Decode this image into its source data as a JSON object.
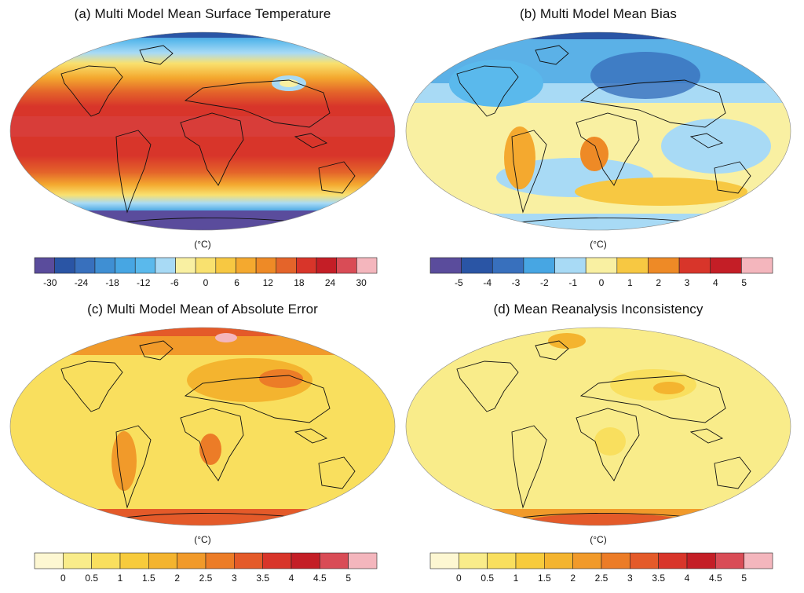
{
  "panels": [
    {
      "id": "a",
      "title": "(a) Multi Model Mean Surface Temperature",
      "unit": "(°C)",
      "palette": [
        "#5a4c9c",
        "#2a55a5",
        "#3870bd",
        "#3f8fd3",
        "#47a6e3",
        "#5ab9ec",
        "#a8daf5",
        "#f9f0a2",
        "#f9e16f",
        "#f7c842",
        "#f4a92f",
        "#ee8a26",
        "#e4642a",
        "#d8352a",
        "#c41e26",
        "#d94c56",
        "#f4b6bd"
      ],
      "tick_labels": [
        "-30",
        "-24",
        "-18",
        "-12",
        "-6",
        "0",
        "6",
        "12",
        "18",
        "24",
        "30"
      ],
      "tick_positions": [
        1,
        3,
        5,
        7,
        9,
        11,
        13,
        15,
        17,
        19,
        21
      ],
      "n_boxes": 22
    },
    {
      "id": "b",
      "title": "(b) Multi Model Mean Bias",
      "unit": "(°C)",
      "palette": [
        "#5a4c9c",
        "#2a55a5",
        "#3870bd",
        "#47a6e3",
        "#a8daf5",
        "#f9f0a2",
        "#f7c842",
        "#ee8a26",
        "#d8352a",
        "#c41e26",
        "#f4b6bd"
      ],
      "tick_labels": [
        "-5",
        "-4",
        "-3",
        "-2",
        "-1",
        "0",
        "1",
        "2",
        "3",
        "4",
        "5"
      ],
      "tick_positions": [
        1,
        2,
        3,
        4,
        5,
        6,
        7,
        8,
        9,
        10,
        11
      ],
      "n_boxes": 12
    },
    {
      "id": "c",
      "title": "(c) Multi Model Mean of Absolute Error",
      "unit": "(°C)",
      "palette": [
        "#fdf7d2",
        "#f9ec8a",
        "#f9df5e",
        "#f7cb3c",
        "#f4b42f",
        "#f19a2a",
        "#ec7c27",
        "#e45a29",
        "#d8352a",
        "#c41e26",
        "#d94c56",
        "#f4b6bd"
      ],
      "tick_labels": [
        "0",
        "0.5",
        "1",
        "1.5",
        "2",
        "2.5",
        "3",
        "3.5",
        "4",
        "4.5",
        "5"
      ],
      "tick_positions": [
        1,
        2,
        3,
        4,
        5,
        6,
        7,
        8,
        9,
        10,
        11
      ],
      "n_boxes": 12
    },
    {
      "id": "d",
      "title": "(d) Mean Reanalysis Inconsistency",
      "unit": "(°C)",
      "palette": [
        "#fdf7d2",
        "#f9ec8a",
        "#f9df5e",
        "#f7cb3c",
        "#f4b42f",
        "#f19a2a",
        "#ec7c27",
        "#e45a29",
        "#d8352a",
        "#c41e26",
        "#d94c56",
        "#f4b6bd"
      ],
      "tick_labels": [
        "0",
        "0.5",
        "1",
        "1.5",
        "2",
        "2.5",
        "3",
        "3.5",
        "4",
        "4.5",
        "5"
      ],
      "tick_positions": [
        1,
        2,
        3,
        4,
        5,
        6,
        7,
        8,
        9,
        10,
        11
      ],
      "n_boxes": 12
    }
  ]
}
